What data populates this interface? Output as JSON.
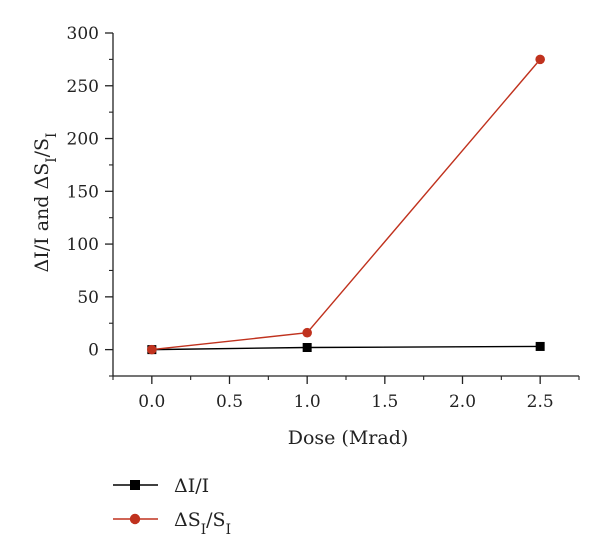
{
  "chart_data": {
    "type": "line",
    "xlabel": "Dose (Mrad)",
    "ylabel": "ΔI/I and ΔS_I/S_I",
    "xlim": [
      -0.25,
      2.75
    ],
    "ylim": [
      -25,
      300
    ],
    "x_ticks": [
      0.0,
      0.5,
      1.0,
      1.5,
      2.0,
      2.5
    ],
    "x_tick_labels": [
      "0.0",
      "0.5",
      "1.0",
      "1.5",
      "2.0",
      "2.5"
    ],
    "y_ticks": [
      0,
      50,
      100,
      150,
      200,
      250,
      300
    ],
    "y_tick_labels": [
      "0",
      "50",
      "100",
      "150",
      "200",
      "250",
      "300"
    ],
    "grid": false,
    "legend_position": "bottom-left",
    "series": [
      {
        "name": "ΔI/I",
        "marker": "square",
        "color": "#000000",
        "x": [
          0.0,
          1.0,
          2.5
        ],
        "y": [
          0,
          2,
          3
        ]
      },
      {
        "name": "ΔS_I/S_I",
        "marker": "circle",
        "color": "#c0321e",
        "x": [
          0.0,
          1.0,
          2.5
        ],
        "y": [
          0,
          16,
          275
        ]
      }
    ]
  }
}
